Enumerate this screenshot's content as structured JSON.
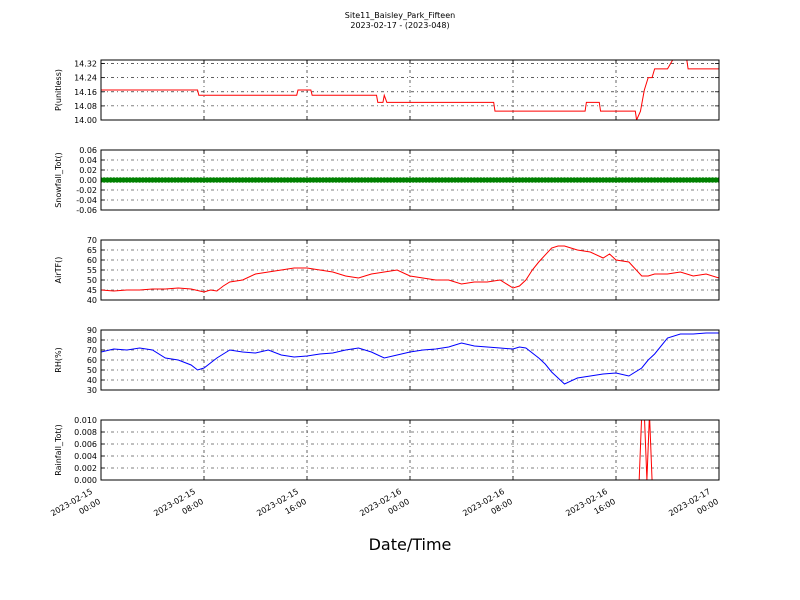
{
  "title": "Site11_Baisley_Park_Fifteen",
  "subtitle": "2023-02-17 - (2023-048)",
  "xlabel": "Date/Time",
  "chart_data": [
    {
      "type": "line",
      "ylabel": "P(unitless)",
      "color": "#ff0000",
      "ylim": [
        14.0,
        14.34
      ],
      "yticks": [
        "14.32",
        "14.24",
        "14.16",
        "14.08",
        "14.00"
      ],
      "ytick_values": [
        14.32,
        14.24,
        14.16,
        14.08,
        14.0
      ],
      "x": [
        0,
        7.5,
        7.6,
        15.2,
        15.3,
        16.3,
        16.4,
        21.4,
        21.5,
        21.9,
        22.0,
        22.1,
        22.2,
        30.5,
        30.6,
        37.6,
        37.7,
        38.7,
        38.8,
        41.5,
        41.6,
        41.9,
        42.2,
        42.5,
        42.8,
        43.0,
        43.4,
        44.0,
        44.4,
        45.5,
        45.6,
        48
      ],
      "y": [
        14.17,
        14.17,
        14.14,
        14.14,
        14.17,
        14.17,
        14.14,
        14.14,
        14.1,
        14.1,
        14.14,
        14.12,
        14.1,
        14.1,
        14.05,
        14.05,
        14.1,
        14.1,
        14.05,
        14.05,
        14.0,
        14.05,
        14.17,
        14.24,
        14.24,
        14.29,
        14.29,
        14.29,
        14.34,
        14.34,
        14.29,
        14.29
      ]
    },
    {
      "type": "scatter",
      "ylabel": "Snowfall_Tot()",
      "color": "#008000",
      "ylim": [
        -0.06,
        0.06
      ],
      "yticks": [
        "0.06",
        "0.04",
        "0.02",
        "0.00",
        "-0.02",
        "-0.04",
        "-0.06"
      ],
      "ytick_values": [
        0.06,
        0.04,
        0.02,
        0.0,
        -0.02,
        -0.04,
        -0.06
      ],
      "x_start": 0,
      "x_end": 48,
      "x_step": 0.25,
      "constant_value": 0.0
    },
    {
      "type": "line",
      "ylabel": "AirTF()",
      "color": "#ff0000",
      "ylim": [
        40,
        70
      ],
      "yticks": [
        "70",
        "65",
        "60",
        "55",
        "50",
        "45",
        "40"
      ],
      "ytick_values": [
        70,
        65,
        60,
        55,
        50,
        45,
        40
      ],
      "x": [
        0,
        1,
        2,
        3,
        4,
        5,
        6,
        7,
        8,
        8.5,
        9,
        9.5,
        10,
        11,
        12,
        13,
        14,
        15,
        16,
        17,
        18,
        19,
        20,
        21,
        22,
        23,
        24,
        25,
        26,
        27,
        28,
        29,
        30,
        31,
        32,
        32.5,
        33,
        33.5,
        34,
        35,
        35.5,
        36,
        36.5,
        37,
        38,
        39,
        39.5,
        40,
        41,
        42,
        42.5,
        43,
        44,
        45,
        46,
        47,
        48
      ],
      "y": [
        45,
        44.5,
        45,
        45,
        45.5,
        45.5,
        46,
        45.5,
        44,
        45,
        44.5,
        47,
        49,
        50,
        53,
        54,
        55,
        56,
        56,
        55,
        54,
        52,
        51,
        53,
        54,
        55,
        52,
        51,
        50,
        50,
        48,
        49,
        49,
        50,
        46,
        47,
        50,
        55,
        59,
        66,
        67,
        67,
        66,
        65,
        64,
        61,
        63,
        60,
        59,
        52,
        52,
        53,
        53,
        54,
        52,
        53,
        51
      ]
    },
    {
      "type": "line",
      "ylabel": "RH(%)",
      "color": "#0000ff",
      "ylim": [
        30,
        90
      ],
      "yticks": [
        "90",
        "80",
        "70",
        "60",
        "50",
        "40",
        "30"
      ],
      "ytick_values": [
        90,
        80,
        70,
        60,
        50,
        40,
        30
      ],
      "x": [
        0,
        1,
        2,
        3,
        4,
        5,
        6,
        7,
        7.5,
        8,
        9,
        10,
        11,
        12,
        13,
        14,
        15,
        16,
        17,
        18,
        19,
        20,
        21,
        22,
        23,
        24,
        25,
        26,
        27,
        28,
        29,
        30,
        31,
        32,
        32.5,
        33,
        34,
        34.5,
        35,
        36,
        37,
        38,
        39,
        40,
        41,
        42,
        42.5,
        43,
        44,
        45,
        46,
        47,
        48
      ],
      "y": [
        68,
        71,
        70,
        72,
        70,
        62,
        60,
        55,
        50,
        52,
        62,
        70,
        68,
        67,
        70,
        65,
        63,
        64,
        66,
        67,
        70,
        72,
        68,
        62,
        65,
        68,
        70,
        71,
        73,
        77,
        74,
        73,
        72,
        71,
        73,
        72,
        62,
        56,
        48,
        36,
        42,
        44,
        46,
        47,
        44,
        52,
        60,
        66,
        82,
        86,
        86,
        87,
        87
      ]
    },
    {
      "type": "line",
      "ylabel": "Rainfall_Tot()",
      "color": "#ff0000",
      "ylim": [
        0,
        0.01
      ],
      "yticks": [
        "0.010",
        "0.008",
        "0.006",
        "0.004",
        "0.002",
        "0.000"
      ],
      "ytick_values": [
        0.01,
        0.008,
        0.006,
        0.004,
        0.002,
        0.0
      ],
      "x": [
        0,
        41.8,
        42.0,
        42.2,
        42.4,
        42.6,
        42.8,
        48
      ],
      "y": [
        0,
        0,
        0.011,
        0.011,
        0,
        0.011,
        0,
        0
      ]
    }
  ],
  "x_range": [
    0,
    48
  ],
  "xticks": [
    {
      "x": 0,
      "line1": "2023-02-15",
      "line2": "00:00"
    },
    {
      "x": 8,
      "line1": "2023-02-15",
      "line2": "08:00"
    },
    {
      "x": 16,
      "line1": "2023-02-15",
      "line2": "16:00"
    },
    {
      "x": 24,
      "line1": "2023-02-16",
      "line2": "00:00"
    },
    {
      "x": 32,
      "line1": "2023-02-16",
      "line2": "08:00"
    },
    {
      "x": 40,
      "line1": "2023-02-16",
      "line2": "16:00"
    },
    {
      "x": 48,
      "line1": "2023-02-17",
      "line2": "00:00"
    }
  ]
}
